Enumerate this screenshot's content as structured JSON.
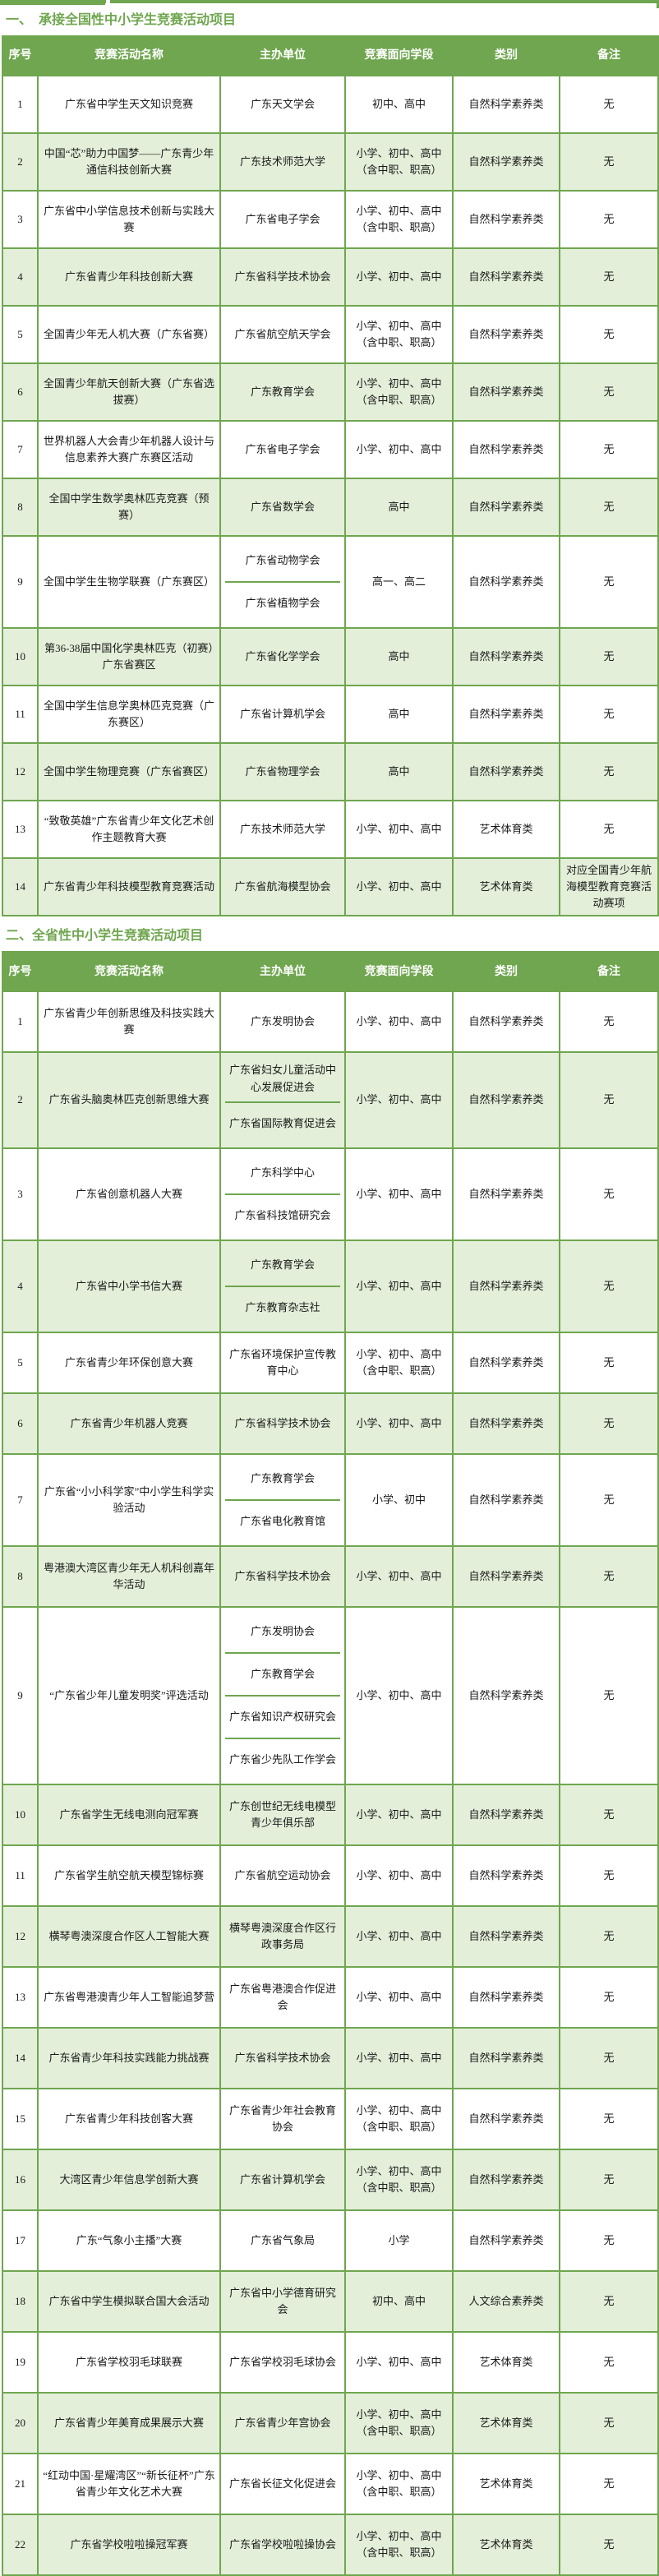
{
  "colors": {
    "accent_green": "#6FA64F",
    "light_row_green": "#E3EFD9",
    "header_text": "#FFFFFF",
    "body_text": "#1A1A1A"
  },
  "sections": [
    {
      "title": "一、　承接全国性中小学生竞赛活动项目",
      "columns": [
        "序号",
        "竞赛活动名称",
        "主办单位",
        "竞赛面向学段",
        "类别",
        "备注"
      ],
      "rows": [
        {
          "no": "1",
          "name": "广东省中学生天文知识竞赛",
          "organizers": [
            "广东天文学会"
          ],
          "grades": "初中、高中",
          "category": "自然科学素养类",
          "note": "无"
        },
        {
          "no": "2",
          "name": "中国“芯”助力中国梦——广东青少年通信科技创新大赛",
          "organizers": [
            "广东技术师范大学"
          ],
          "grades": "小学、初中、高中（含中职、职高）",
          "category": "自然科学素养类",
          "note": "无"
        },
        {
          "no": "3",
          "name": "广东省中小学信息技术创新与实践大赛",
          "organizers": [
            "广东省电子学会"
          ],
          "grades": "小学、初中、高中（含中职、职高）",
          "category": "自然科学素养类",
          "note": "无"
        },
        {
          "no": "4",
          "name": "广东省青少年科技创新大赛",
          "organizers": [
            "广东省科学技术协会"
          ],
          "grades": "小学、初中、高中",
          "category": "自然科学素养类",
          "note": "无"
        },
        {
          "no": "5",
          "name": "全国青少年无人机大赛（广东省赛）",
          "organizers": [
            "广东省航空航天学会"
          ],
          "grades": "小学、初中、高中（含中职、职高）",
          "category": "自然科学素养类",
          "note": "无"
        },
        {
          "no": "6",
          "name": "全国青少年航天创新大赛（广东省选拔赛）",
          "organizers": [
            "广东教育学会"
          ],
          "grades": "小学、初中、高中（含中职、职高）",
          "category": "自然科学素养类",
          "note": "无"
        },
        {
          "no": "7",
          "name": "世界机器人大会青少年机器人设计与信息素养大赛广东赛区活动",
          "organizers": [
            "广东省电子学会"
          ],
          "grades": "小学、初中、高中",
          "category": "自然科学素养类",
          "note": "无"
        },
        {
          "no": "8",
          "name": "全国中学生数学奥林匹克竞赛（预赛）",
          "organizers": [
            "广东省数学会"
          ],
          "grades": "高中",
          "category": "自然科学素养类",
          "note": "无"
        },
        {
          "no": "9",
          "name": "全国中学生生物学联赛（广东赛区）",
          "organizers": [
            "广东省动物学会",
            "广东省植物学会"
          ],
          "grades": "高一、高二",
          "category": "自然科学素养类",
          "note": "无"
        },
        {
          "no": "10",
          "name": "第36-38届中国化学奥林匹克（初赛）广东省赛区",
          "organizers": [
            "广东省化学学会"
          ],
          "grades": "高中",
          "category": "自然科学素养类",
          "note": "无"
        },
        {
          "no": "11",
          "name": "全国中学生信息学奥林匹克竞赛（广东赛区）",
          "organizers": [
            "广东省计算机学会"
          ],
          "grades": "高中",
          "category": "自然科学素养类",
          "note": "无"
        },
        {
          "no": "12",
          "name": "全国中学生物理竞赛（广东省赛区）",
          "organizers": [
            "广东省物理学会"
          ],
          "grades": "高中",
          "category": "自然科学素养类",
          "note": "无"
        },
        {
          "no": "13",
          "name": "“致敬英雄”广东省青少年文化艺术创作主题教育大赛",
          "organizers": [
            "广东技术师范大学"
          ],
          "grades": "小学、初中、高中",
          "category": "艺术体育类",
          "note": "无"
        },
        {
          "no": "14",
          "name": "广东省青少年科技模型教育竞赛活动",
          "organizers": [
            "广东省航海模型协会"
          ],
          "grades": "小学、初中、高中",
          "category": "艺术体育类",
          "note": "对应全国青少年航海模型教育竞赛活动赛项"
        }
      ]
    },
    {
      "title": "二、全省性中小学生竞赛活动项目",
      "columns": [
        "序号",
        "竞赛活动名称",
        "主办单位",
        "竞赛面向学段",
        "类别",
        "备注"
      ],
      "rows": [
        {
          "no": "1",
          "name": "广东省青少年创新思维及科技实践大赛",
          "organizers": [
            "广东发明协会"
          ],
          "grades": "小学、初中、高中",
          "category": "自然科学素养类",
          "note": "无"
        },
        {
          "no": "2",
          "name": "广东省头脑奥林匹克创新思维大赛",
          "organizers": [
            "广东省妇女儿童活动中心发展促进会",
            "广东省国际教育促进会"
          ],
          "grades": "小学、初中、高中",
          "category": "自然科学素养类",
          "note": "无"
        },
        {
          "no": "3",
          "name": "广东省创意机器人大赛",
          "organizers": [
            "广东科学中心",
            "广东省科技馆研究会"
          ],
          "grades": "小学、初中、高中",
          "category": "自然科学素养类",
          "note": "无"
        },
        {
          "no": "4",
          "name": "广东省中小学书信大赛",
          "organizers": [
            "广东教育学会",
            "广东教育杂志社"
          ],
          "grades": "小学、初中、高中",
          "category": "自然科学素养类",
          "note": "无"
        },
        {
          "no": "5",
          "name": "广东省青少年环保创意大赛",
          "organizers": [
            "广东省环境保护宣传教育中心"
          ],
          "grades": "小学、初中、高中（含中职、职高）",
          "category": "自然科学素养类",
          "note": "无"
        },
        {
          "no": "6",
          "name": "广东省青少年机器人竞赛",
          "organizers": [
            "广东省科学技术协会"
          ],
          "grades": "小学、初中、高中",
          "category": "自然科学素养类",
          "note": "无"
        },
        {
          "no": "7",
          "name": "广东省“小小科学家”中小学生科学实验活动",
          "organizers": [
            "广东教育学会",
            "广东省电化教育馆"
          ],
          "grades": "小学、初中",
          "category": "自然科学素养类",
          "note": "无"
        },
        {
          "no": "8",
          "name": "粤港澳大湾区青少年无人机科创嘉年华活动",
          "organizers": [
            "广东省科学技术协会"
          ],
          "grades": "小学、初中、高中",
          "category": "自然科学素养类",
          "note": "无"
        },
        {
          "no": "9",
          "name": "“广东省少年儿童发明奖”评选活动",
          "organizers": [
            "广东发明协会",
            "广东教育学会",
            "广东省知识产权研究会",
            "广东省少先队工作学会"
          ],
          "grades": "小学、初中、高中",
          "category": "自然科学素养类",
          "note": "无"
        },
        {
          "no": "10",
          "name": "广东省学生无线电测向冠军赛",
          "organizers": [
            "广东创世纪无线电模型青少年俱乐部"
          ],
          "grades": "小学、初中、高中",
          "category": "自然科学素养类",
          "note": "无"
        },
        {
          "no": "11",
          "name": "广东省学生航空航天模型锦标赛",
          "organizers": [
            "广东省航空运动协会"
          ],
          "grades": "小学、初中、高中",
          "category": "自然科学素养类",
          "note": "无"
        },
        {
          "no": "12",
          "name": "横琴粤澳深度合作区人工智能大赛",
          "organizers": [
            "横琴粤澳深度合作区行政事务局"
          ],
          "grades": "小学、初中、高中",
          "category": "自然科学素养类",
          "note": "无"
        },
        {
          "no": "13",
          "name": "广东省粤港澳青少年人工智能追梦营",
          "organizers": [
            "广东省粤港澳合作促进会"
          ],
          "grades": "小学、初中、高中",
          "category": "自然科学素养类",
          "note": "无"
        },
        {
          "no": "14",
          "name": "广东省青少年科技实践能力挑战赛",
          "organizers": [
            "广东省科学技术协会"
          ],
          "grades": "小学、初中、高中",
          "category": "自然科学素养类",
          "note": "无"
        },
        {
          "no": "15",
          "name": "广东省青少年科技创客大赛",
          "organizers": [
            "广东省青少年社会教育协会"
          ],
          "grades": "小学、初中、高中（含中职、职高）",
          "category": "自然科学素养类",
          "note": "无"
        },
        {
          "no": "16",
          "name": "大湾区青少年信息学创新大赛",
          "organizers": [
            "广东省计算机学会"
          ],
          "grades": "小学、初中、高中（含中职、职高）",
          "category": "自然科学素养类",
          "note": "无"
        },
        {
          "no": "17",
          "name": "广东“气象小主播”大赛",
          "organizers": [
            "广东省气象局"
          ],
          "grades": "小学",
          "category": "自然科学素养类",
          "note": "无"
        },
        {
          "no": "18",
          "name": "广东省中学生模拟联合国大会活动",
          "organizers": [
            "广东省中小学德育研究会"
          ],
          "grades": "初中、高中",
          "category": "人文综合素养类",
          "note": "无"
        },
        {
          "no": "19",
          "name": "广东省学校羽毛球联赛",
          "organizers": [
            "广东省学校羽毛球协会"
          ],
          "grades": "小学、初中、高中",
          "category": "艺术体育类",
          "note": "无"
        },
        {
          "no": "20",
          "name": "广东省青少年美育成果展示大赛",
          "organizers": [
            "广东省青少年宫协会"
          ],
          "grades": "小学、初中、高中（含中职、职高）",
          "category": "艺术体育类",
          "note": "无"
        },
        {
          "no": "21",
          "name": "“红动中国·星耀湾区”“新长征杯”广东省青少年文化艺术大赛",
          "organizers": [
            "广东省长征文化促进会"
          ],
          "grades": "小学、初中、高中（含中职、职高）",
          "category": "艺术体育类",
          "note": "无"
        },
        {
          "no": "22",
          "name": "广东省学校啦啦操冠军赛",
          "organizers": [
            "广东省学校啦啦操协会"
          ],
          "grades": "小学、初中、高中（含中职、职高）",
          "category": "艺术体育类",
          "note": "无"
        }
      ]
    }
  ]
}
